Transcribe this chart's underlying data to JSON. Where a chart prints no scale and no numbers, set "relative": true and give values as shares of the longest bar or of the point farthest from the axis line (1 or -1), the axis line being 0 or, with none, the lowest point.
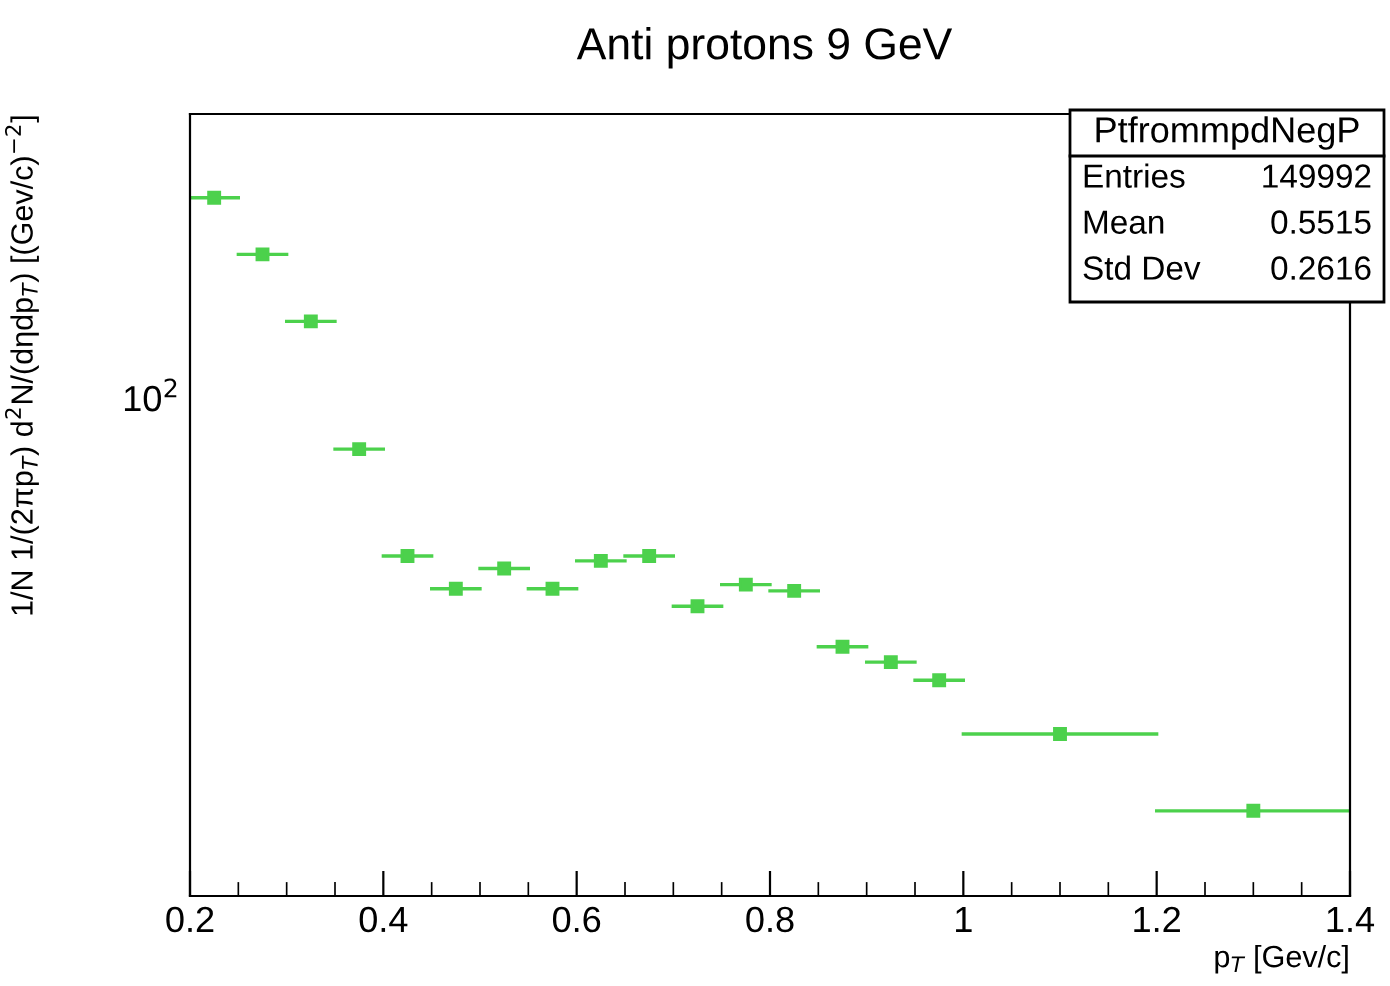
{
  "chart_data": {
    "type": "scatter",
    "title": "Anti protons 9 GeV",
    "xlabel": "p$_{T}$ [Gev/c]",
    "ylabel": "1/N 1/(2πp$_{T}$) d$^{2}$N/(dηdp$_{T}$) [(Gev/c)$^{−2}$]",
    "x": [
      0.225,
      0.275,
      0.325,
      0.375,
      0.425,
      0.475,
      0.525,
      0.575,
      0.625,
      0.675,
      0.725,
      0.775,
      0.825,
      0.875,
      0.925,
      0.975,
      1.1,
      1.3
    ],
    "series": [
      {
        "color": "#4cd14c",
        "values": [
          1,
          0.919,
          0.823,
          0.64,
          0.487,
          0.44,
          0.469,
          0.44,
          0.48,
          0.487,
          0.415,
          0.446,
          0.437,
          0.357,
          0.335,
          0.309,
          0.232,
          0.122
        ],
        "xerrors": [
          0.025,
          0.025,
          0.025,
          0.025,
          0.025,
          0.025,
          0.025,
          0.025,
          0.025,
          0.025,
          0.025,
          0.025,
          0.025,
          0.025,
          0.025,
          0.025,
          0.1,
          0.1
        ]
      }
    ],
    "relative": true,
    "marker": "square",
    "xlim": [
      0.2,
      1.4
    ],
    "xticks": [
      0.2,
      {
        "value": 0.25,
        "label": null
      },
      {
        "value": 0.3,
        "label": null
      },
      {
        "value": 0.35,
        "label": null
      },
      0.4,
      {
        "value": 0.45,
        "label": null
      },
      {
        "value": 0.5,
        "label": null
      },
      {
        "value": 0.55,
        "label": null
      },
      0.6,
      {
        "value": 0.65,
        "label": null
      },
      {
        "value": 0.7,
        "label": null
      },
      {
        "value": 0.75,
        "label": null
      },
      0.8,
      {
        "value": 0.85,
        "label": null
      },
      {
        "value": 0.9,
        "label": null
      },
      {
        "value": 0.95,
        "label": null
      },
      1,
      {
        "value": 1.05,
        "label": null
      },
      {
        "value": 1.1,
        "label": null
      },
      {
        "value": 1.15,
        "label": null
      },
      1.2,
      {
        "value": 1.25,
        "label": null
      },
      {
        "value": 1.3,
        "label": null
      },
      {
        "value": 1.35,
        "label": null
      },
      1.4
    ],
    "annotations": [
      "10$^{2}$",
      "PtfrommpdNegP",
      "Entries",
      "149992",
      "Mean",
      "0.5515",
      "Std Dev",
      "0.2616"
    ]
  }
}
